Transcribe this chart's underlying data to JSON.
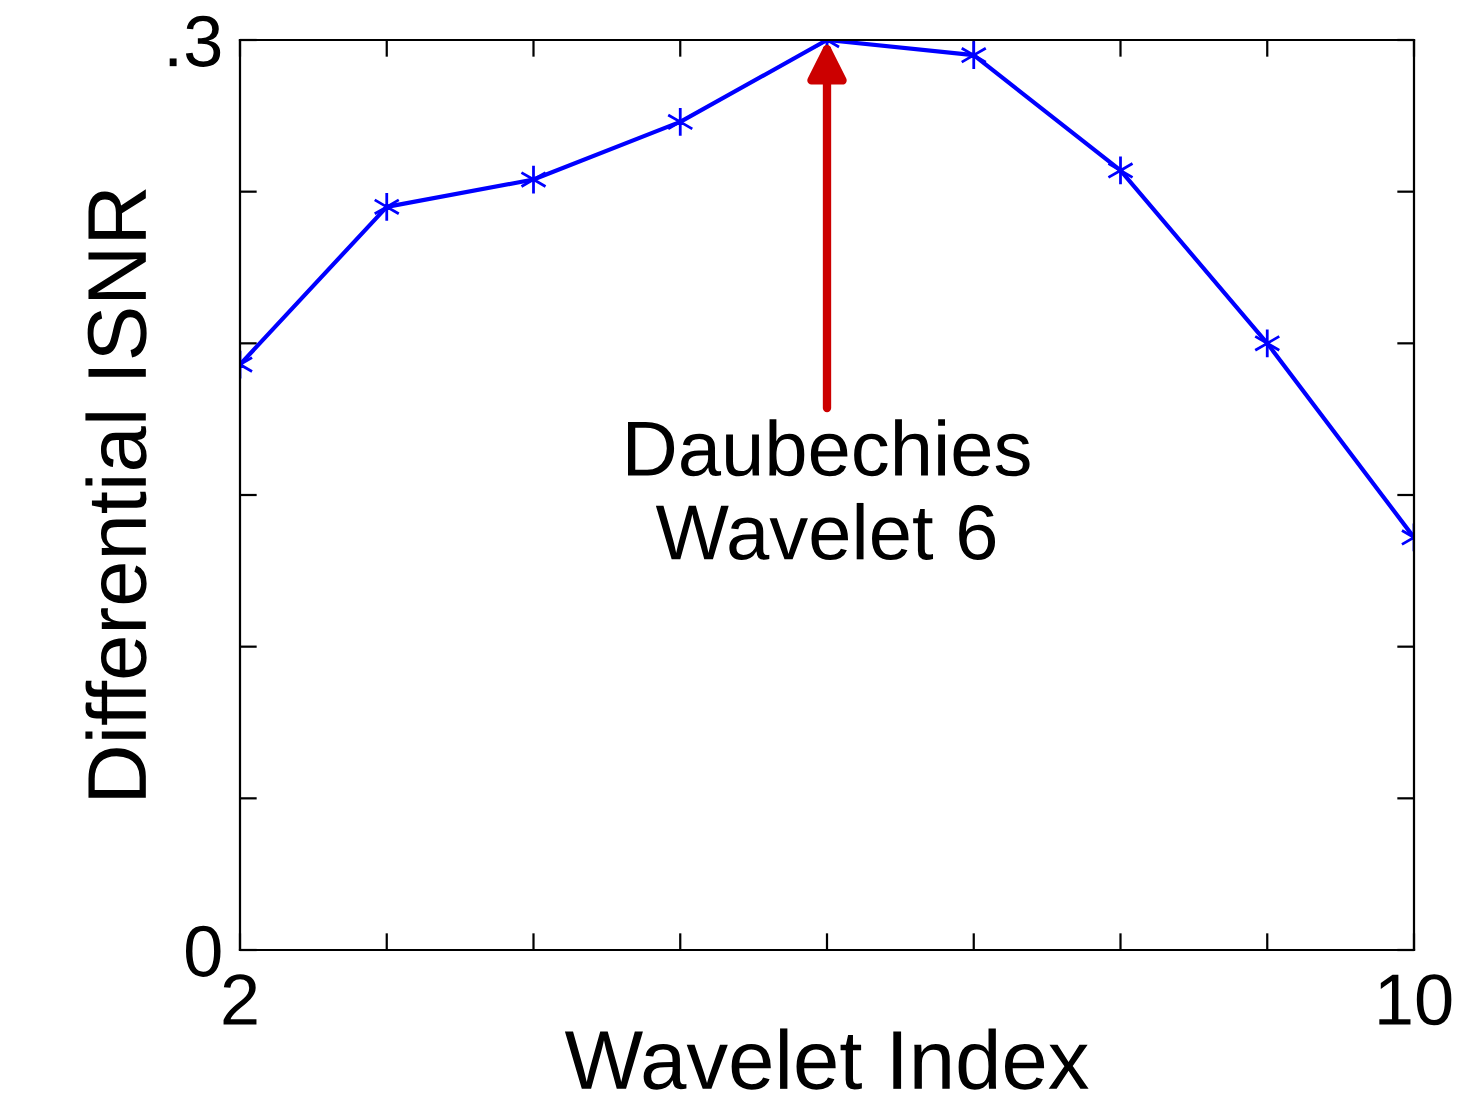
{
  "chart_data": {
    "type": "line",
    "xlabel": "Wavelet Index",
    "ylabel": "Differential ISNR",
    "x": [
      2,
      3,
      4,
      5,
      6,
      7,
      8,
      9,
      10
    ],
    "series": [
      {
        "color": "#0000ff",
        "values": [
          0.193,
          0.245,
          0.254,
          0.273,
          0.3,
          0.295,
          0.257,
          0.2,
          0.136
        ]
      }
    ],
    "xlim": [
      2,
      10
    ],
    "ylim": [
      0,
      0.3
    ],
    "xticks": [
      2,
      {
        "value": 3,
        "label": null
      },
      {
        "value": 4,
        "label": null
      },
      {
        "value": 5,
        "label": null
      },
      {
        "value": 6,
        "label": null
      },
      {
        "value": 7,
        "label": null
      },
      {
        "value": 8,
        "label": null
      },
      {
        "value": 9,
        "label": null
      },
      10
    ],
    "yticks": [
      0,
      {
        "value": 0.05,
        "label": null
      },
      {
        "value": 0.1,
        "label": null
      },
      {
        "value": 0.15,
        "label": null
      },
      {
        "value": 0.2,
        "label": null
      },
      {
        "value": 0.25,
        "label": null
      },
      {
        "value": 0.3,
        "label": ".3"
      }
    ],
    "annotations": [
      {
        "text": "Daubechies\nWavelet 6",
        "x": 6,
        "y": 0.3
      }
    ],
    "marker": "cross",
    "line_style": "solid",
    "grid": false,
    "legend": false
  }
}
